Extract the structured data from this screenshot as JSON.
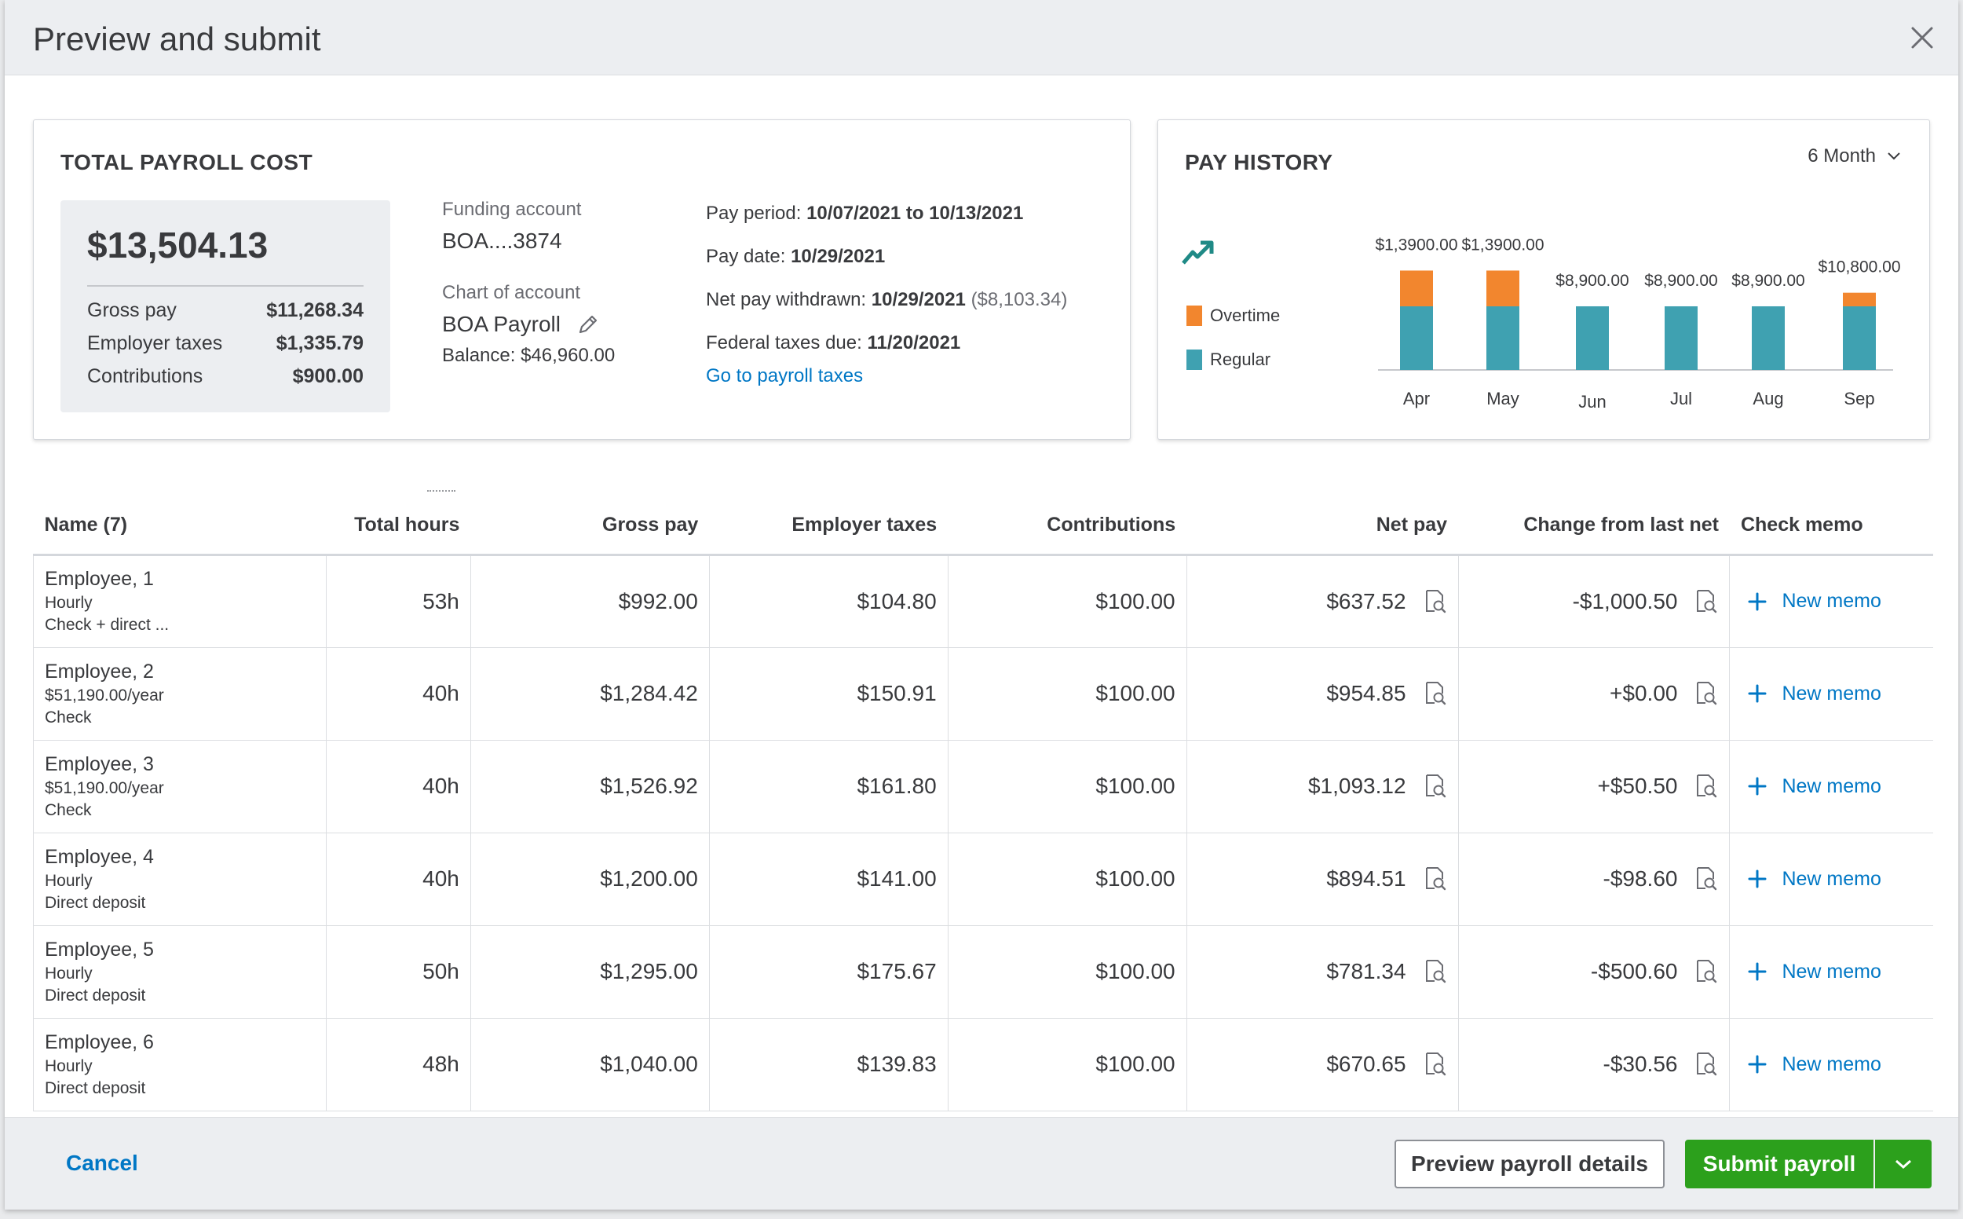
{
  "modal": {
    "title": "Preview and submit"
  },
  "payroll_cost": {
    "title": "TOTAL PAYROLL COST",
    "total": "$13,504.13",
    "rows": [
      {
        "label": "Gross pay",
        "value": "$11,268.34"
      },
      {
        "label": "Employer taxes",
        "value": "$1,335.79"
      },
      {
        "label": "Contributions",
        "value": "$900.00"
      }
    ],
    "funding_label": "Funding account",
    "funding_value": "BOA....3874",
    "chart_label": "Chart of account",
    "chart_value": "BOA Payroll",
    "balance": "Balance: $46,960.00",
    "pay_period_label": "Pay period:",
    "pay_period_value": "10/07/2021 to 10/13/2021",
    "pay_date_label": "Pay date:",
    "pay_date_value": "10/29/2021",
    "net_pay_label": "Net pay withdrawn:",
    "net_pay_value": "10/29/2021",
    "net_pay_amount": "($8,103.34)",
    "federal_label": "Federal taxes due:",
    "federal_value": "11/20/2021",
    "taxes_link": "Go to payroll taxes"
  },
  "pay_history": {
    "title": "PAY HISTORY",
    "range": "6 Month",
    "colors": {
      "overtime": "#f2862e",
      "regular": "#3fa1b1",
      "trend": "#1f8a86"
    }
  },
  "chart_data": {
    "type": "bar",
    "stacked": true,
    "categories": [
      "Apr",
      "May",
      "Jun",
      "Jul",
      "Aug",
      "Sep"
    ],
    "series": [
      {
        "name": "Regular",
        "values": [
          8900,
          8900,
          8900,
          8900,
          8900,
          8900
        ]
      },
      {
        "name": "Overtime",
        "values": [
          5000,
          5000,
          0,
          0,
          0,
          1900
        ]
      }
    ],
    "data_labels": [
      "$1,3900.00",
      "$1,3900.00",
      "$8,900.00",
      "$8,900.00",
      "$8,900.00",
      "$10,800.00"
    ],
    "legend": [
      "Overtime",
      "Regular"
    ],
    "ylim": [
      0,
      14500
    ],
    "grid": false
  },
  "table": {
    "headers": [
      "Name (7)",
      "Total hours",
      "Gross pay",
      "Employer taxes",
      "Contributions",
      "Net pay",
      "Change from last net",
      "Check memo"
    ],
    "memo_label": "New memo",
    "rows": [
      {
        "name": "Employee, 1",
        "type": "Hourly",
        "method": "Check + direct ...",
        "hours": "53h",
        "gross": "$992.00",
        "taxes": "$104.80",
        "contrib": "$100.00",
        "net": "$637.52",
        "change": "-$1,000.50"
      },
      {
        "name": "Employee, 2",
        "type": "$51,190.00/year",
        "method": "Check",
        "hours": "40h",
        "gross": "$1,284.42",
        "taxes": "$150.91",
        "contrib": "$100.00",
        "net": "$954.85",
        "change": "+$0.00"
      },
      {
        "name": "Employee, 3",
        "type": "$51,190.00/year",
        "method": "Check",
        "hours": "40h",
        "gross": "$1,526.92",
        "taxes": "$161.80",
        "contrib": "$100.00",
        "net": "$1,093.12",
        "change": "+$50.50"
      },
      {
        "name": "Employee, 4",
        "type": "Hourly",
        "method": "Direct deposit",
        "hours": "40h",
        "gross": "$1,200.00",
        "taxes": "$141.00",
        "contrib": "$100.00",
        "net": "$894.51",
        "change": "-$98.60"
      },
      {
        "name": "Employee, 5",
        "type": "Hourly",
        "method": "Direct deposit",
        "hours": "50h",
        "gross": "$1,295.00",
        "taxes": "$175.67",
        "contrib": "$100.00",
        "net": "$781.34",
        "change": "-$500.60"
      },
      {
        "name": "Employee, 6",
        "type": "Hourly",
        "method": "Direct deposit",
        "hours": "48h",
        "gross": "$1,040.00",
        "taxes": "$139.83",
        "contrib": "$100.00",
        "net": "$670.65",
        "change": "-$30.56"
      }
    ]
  },
  "footer": {
    "cancel": "Cancel",
    "preview": "Preview payroll details",
    "submit": "Submit payroll"
  },
  "icons": {
    "close": "close-icon",
    "edit": "pencil-icon",
    "chevron": "chevron-down-icon",
    "trend": "trend-up-icon",
    "view": "magnify-document-icon",
    "add": "plus-icon"
  }
}
